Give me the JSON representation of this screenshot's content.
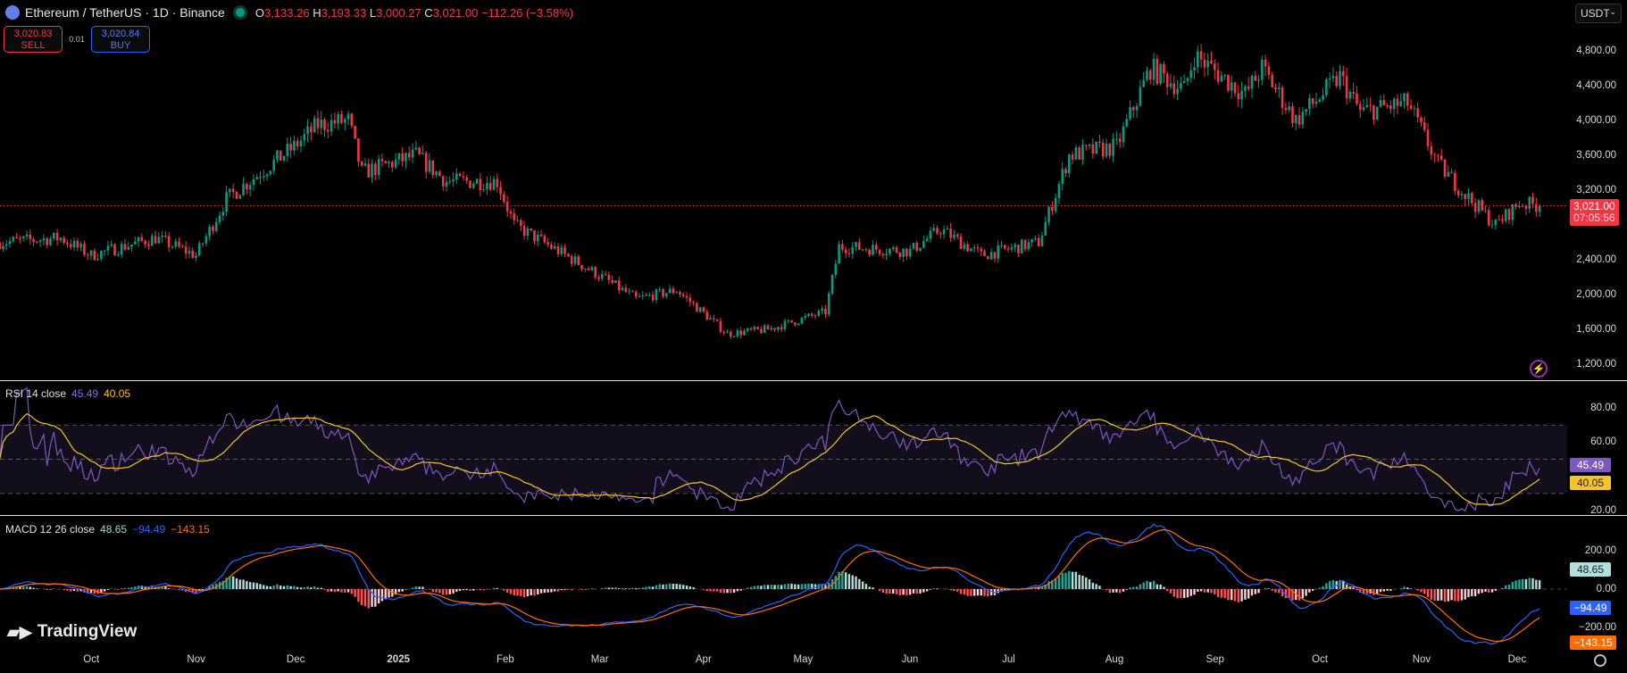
{
  "header": {
    "symbol": "Ethereum / TetherUS · 1D · Binance",
    "o_label": "O",
    "o": "3,133.26",
    "h_label": "H",
    "h": "3,193.33",
    "l_label": "L",
    "l": "3,000.27",
    "c_label": "C",
    "c": "3,021.00",
    "change": "−112.26 (−3.58%)"
  },
  "trade": {
    "sell_price": "3,020.83",
    "sell_label": "SELL",
    "spread": "0.01",
    "buy_price": "3,020.84",
    "buy_label": "BUY"
  },
  "currency": "USDT",
  "price_axis": [
    "4,800.00",
    "4,400.00",
    "4,000.00",
    "3,600.00",
    "3,200.00",
    "2,400.00",
    "2,000.00",
    "1,600.00",
    "1,200.00"
  ],
  "last_price": {
    "value": "3,021.00",
    "countdown": "07:05:56"
  },
  "rsi": {
    "title": "RSI 14 close",
    "value": "45.49",
    "ma": "40.05",
    "axis": [
      "80.00",
      "60.00",
      "20.00"
    ]
  },
  "macd": {
    "title": "MACD 12 26 close",
    "hist": "48.65",
    "macd": "−94.49",
    "signal": "−143.15",
    "axis": [
      "200.00",
      "0.00",
      "−200.00"
    ]
  },
  "time_axis": [
    "Oct",
    "Nov",
    "Dec",
    "2025",
    "Feb",
    "Mar",
    "Apr",
    "May",
    "Jun",
    "Jul",
    "Aug",
    "Sep",
    "Oct",
    "Nov",
    "Dec"
  ],
  "brand": "TradingView",
  "colors": {
    "up": "#089981",
    "down": "#f23645",
    "rsi": "#7e57c2",
    "rsi_ma": "#f7c325",
    "macd": "#2962ff",
    "signal": "#ff6d00"
  },
  "chart_data": {
    "type": "candlestick",
    "interval": "1D",
    "price_anchors": [
      [
        "2024-09-04",
        2600
      ],
      [
        "2024-09-22",
        2650
      ],
      [
        "2024-10-01",
        2450
      ],
      [
        "2024-10-20",
        2650
      ],
      [
        "2024-11-01",
        2450
      ],
      [
        "2024-11-10",
        3100
      ],
      [
        "2024-11-30",
        3700
      ],
      [
        "2024-12-07",
        3950
      ],
      [
        "2024-12-16",
        4000
      ],
      [
        "2024-12-20",
        3400
      ],
      [
        "2025-01-05",
        3600
      ],
      [
        "2025-01-14",
        3300
      ],
      [
        "2025-01-29",
        3300
      ],
      [
        "2025-02-03",
        2800
      ],
      [
        "2025-03-01",
        2200
      ],
      [
        "2025-03-11",
        1950
      ],
      [
        "2025-03-23",
        2050
      ],
      [
        "2025-04-07",
        1550
      ],
      [
        "2025-04-19",
        1600
      ],
      [
        "2025-05-06",
        1800
      ],
      [
        "2025-05-10",
        2550
      ],
      [
        "2025-05-31",
        2500
      ],
      [
        "2025-06-09",
        2750
      ],
      [
        "2025-06-21",
        2450
      ],
      [
        "2025-07-08",
        2600
      ],
      [
        "2025-07-17",
        3600
      ],
      [
        "2025-07-31",
        3700
      ],
      [
        "2025-08-10",
        4600
      ],
      [
        "2025-08-20",
        4350
      ],
      [
        "2025-08-23",
        4750
      ],
      [
        "2025-09-07",
        4300
      ],
      [
        "2025-09-12",
        4600
      ],
      [
        "2025-09-22",
        4000
      ],
      [
        "2025-10-05",
        4500
      ],
      [
        "2025-10-11",
        4100
      ],
      [
        "2025-10-25",
        4200
      ],
      [
        "2025-11-03",
        3500
      ],
      [
        "2025-11-11",
        3150
      ],
      [
        "2025-11-20",
        2800
      ],
      [
        "2025-11-27",
        3050
      ],
      [
        "2025-12-03",
        3021
      ]
    ],
    "price_range": [
      1100,
      5000
    ]
  }
}
